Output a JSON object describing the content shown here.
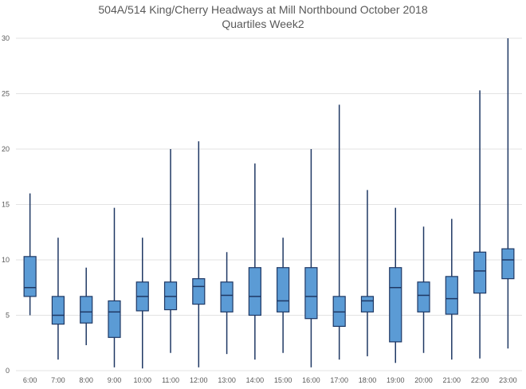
{
  "chart_data": {
    "type": "boxplot",
    "title": "504A/514 King/Cherry Headways at Mill Northbound October 2018",
    "subtitle": "Quartiles Week2",
    "xlabel": "",
    "ylabel": "",
    "ylim": [
      0,
      30
    ],
    "yticks": [
      0,
      5,
      10,
      15,
      20,
      25,
      30
    ],
    "grid": true,
    "colors": {
      "box_fill": "#5b9bd5",
      "box_stroke": "#1f3864",
      "grid": "#e3e3e3",
      "text": "#595959"
    },
    "categories": [
      "6:00",
      "7:00",
      "8:00",
      "9:00",
      "10:00",
      "11:00",
      "12:00",
      "13:00",
      "14:00",
      "15:00",
      "16:00",
      "17:00",
      "18:00",
      "19:00",
      "20:00",
      "21:00",
      "22:00",
      "23:00"
    ],
    "boxes": [
      {
        "min": 5.0,
        "q1": 6.7,
        "median": 7.5,
        "q3": 10.3,
        "max": 16.0
      },
      {
        "min": 1.0,
        "q1": 4.2,
        "median": 5.0,
        "q3": 6.7,
        "max": 12.0
      },
      {
        "min": 2.3,
        "q1": 4.3,
        "median": 5.3,
        "q3": 6.7,
        "max": 9.3
      },
      {
        "min": 0.3,
        "q1": 3.0,
        "median": 5.3,
        "q3": 6.3,
        "max": 14.7
      },
      {
        "min": 0.2,
        "q1": 5.4,
        "median": 6.7,
        "q3": 8.0,
        "max": 12.0
      },
      {
        "min": 1.6,
        "q1": 5.5,
        "median": 6.7,
        "q3": 8.0,
        "max": 20.0
      },
      {
        "min": 0.3,
        "q1": 6.0,
        "median": 7.6,
        "q3": 8.3,
        "max": 20.7
      },
      {
        "min": 1.5,
        "q1": 5.3,
        "median": 6.8,
        "q3": 8.0,
        "max": 10.7
      },
      {
        "min": 1.0,
        "q1": 5.0,
        "median": 6.7,
        "q3": 9.3,
        "max": 18.7
      },
      {
        "min": 1.6,
        "q1": 5.3,
        "median": 6.3,
        "q3": 9.3,
        "max": 12.0
      },
      {
        "min": 0.3,
        "q1": 4.7,
        "median": 6.7,
        "q3": 9.3,
        "max": 20.0
      },
      {
        "min": 1.0,
        "q1": 4.0,
        "median": 5.3,
        "q3": 6.7,
        "max": 24.0
      },
      {
        "min": 1.3,
        "q1": 5.3,
        "median": 6.3,
        "q3": 6.7,
        "max": 16.3
      },
      {
        "min": 0.7,
        "q1": 2.6,
        "median": 7.5,
        "q3": 9.3,
        "max": 14.7
      },
      {
        "min": 1.6,
        "q1": 5.3,
        "median": 6.8,
        "q3": 8.0,
        "max": 13.0
      },
      {
        "min": 1.0,
        "q1": 5.1,
        "median": 6.5,
        "q3": 8.5,
        "max": 13.7
      },
      {
        "min": 1.1,
        "q1": 7.0,
        "median": 9.0,
        "q3": 10.7,
        "max": 25.3
      },
      {
        "min": 2.0,
        "q1": 8.3,
        "median": 10.0,
        "q3": 11.0,
        "max": 30.0
      }
    ]
  }
}
